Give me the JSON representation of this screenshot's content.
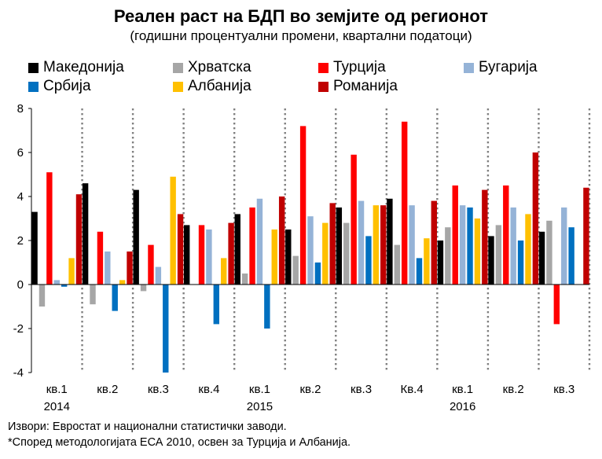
{
  "chart_data": {
    "type": "bar",
    "title": "Реален раст на БДП во земјите од регионот",
    "subtitle": "(годишни процентуални промени, квартални податоци)",
    "xlabel": "",
    "ylabel": "",
    "ylim": [
      -4,
      8
    ],
    "yticks": [
      -4,
      -2,
      0,
      2,
      4,
      6,
      8
    ],
    "ytick_labels": [
      "-4",
      "-2",
      "0",
      "2",
      "4",
      "6",
      "8"
    ],
    "categories": [
      "кв.1",
      "кв.2",
      "кв.3",
      "кв.4",
      "кв.1",
      "кв.2",
      "кв.3",
      "Кв.4",
      "кв.1",
      "кв.2",
      "кв.3"
    ],
    "year_labels": [
      "2014",
      "",
      "",
      "",
      "2015",
      "",
      "",
      "",
      "2016",
      "",
      ""
    ],
    "series": [
      {
        "name": "Македонија",
        "color": "#000000",
        "values": [
          3.3,
          4.6,
          4.3,
          2.7,
          3.2,
          2.5,
          3.5,
          3.9,
          2.0,
          2.2,
          2.4
        ]
      },
      {
        "name": "Хрватска",
        "color": "#a6a6a6",
        "values": [
          -1.0,
          -0.9,
          -0.3,
          null,
          0.5,
          1.3,
          2.8,
          1.8,
          2.6,
          2.7,
          2.9
        ]
      },
      {
        "name": "Турција",
        "color": "#ff0000",
        "values": [
          5.1,
          2.4,
          1.8,
          2.7,
          3.5,
          7.2,
          5.9,
          7.4,
          4.5,
          4.5,
          -1.8
        ]
      },
      {
        "name": "Бугарија",
        "color": "#95b3d7",
        "values": [
          0.2,
          1.5,
          0.8,
          2.5,
          3.9,
          3.1,
          3.8,
          3.6,
          3.6,
          3.5,
          3.5
        ]
      },
      {
        "name": "Србија",
        "color": "#0070c0",
        "values": [
          -0.1,
          -1.2,
          -4.0,
          -1.8,
          -2.0,
          1.0,
          2.2,
          1.2,
          3.5,
          2.0,
          2.6
        ]
      },
      {
        "name": "Албанија",
        "color": "#ffc000",
        "values": [
          1.2,
          0.2,
          4.9,
          1.2,
          2.5,
          2.8,
          3.6,
          2.1,
          3.0,
          3.2,
          null
        ]
      },
      {
        "name": "Романија",
        "color": "#c00000",
        "values": [
          4.1,
          1.5,
          3.2,
          2.8,
          4.0,
          3.7,
          3.6,
          3.8,
          4.3,
          6.0,
          4.4
        ]
      }
    ],
    "legend_position": "top",
    "grid": false
  },
  "footnotes": [
    "Извори: Евростат и национални статистички заводи.",
    "*Според методологијата ЕСА 2010, освен за Турција и Албанија."
  ]
}
